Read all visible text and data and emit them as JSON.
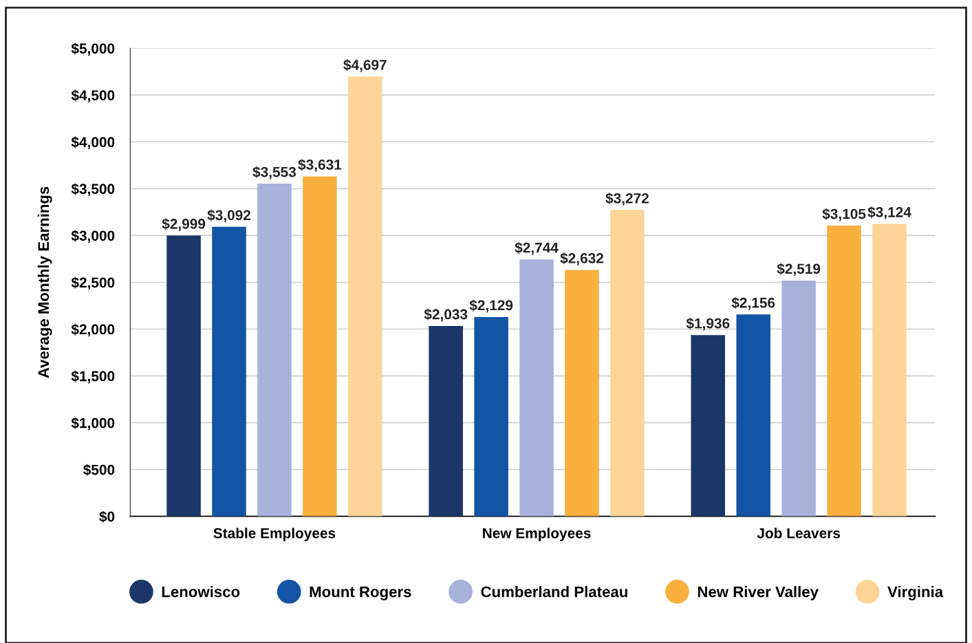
{
  "chart_data": {
    "type": "bar",
    "ylabel": "Average Monthly Earnings",
    "categories": [
      "Stable Employees",
      "New Employees",
      "Job Leavers"
    ],
    "series": [
      {
        "name": "Lenowisco",
        "color": "#1b3668",
        "values": [
          2999,
          2033,
          1936
        ],
        "value_labels": [
          "$2,999",
          "$2,033",
          "$1,936"
        ]
      },
      {
        "name": "Mount Rogers",
        "color": "#1355a5",
        "values": [
          3092,
          2129,
          2156
        ],
        "value_labels": [
          "$3,092",
          "$2,129",
          "$2,156"
        ]
      },
      {
        "name": "Cumberland Plateau",
        "color": "#a8b1da",
        "values": [
          3553,
          2744,
          2519
        ],
        "value_labels": [
          "$3,553",
          "$2,744",
          "$2,519"
        ]
      },
      {
        "name": "New River Valley",
        "color": "#f9b03f",
        "values": [
          3631,
          2632,
          3105
        ],
        "value_labels": [
          "$3,631",
          "$2,632",
          "$3,105"
        ]
      },
      {
        "name": "Virginia",
        "color": "#fcd597",
        "values": [
          4697,
          3272,
          3124
        ],
        "value_labels": [
          "$4,697",
          "$3,272",
          "$3,124"
        ]
      }
    ],
    "ylim": [
      0,
      5000
    ],
    "yticks": [
      {
        "value": 0,
        "label": "$0"
      },
      {
        "value": 500,
        "label": "$500"
      },
      {
        "value": 1000,
        "label": "$1,000"
      },
      {
        "value": 1500,
        "label": "$1,500"
      },
      {
        "value": 2000,
        "label": "$2,000"
      },
      {
        "value": 2500,
        "label": "$2,500"
      },
      {
        "value": 3000,
        "label": "$3,000"
      },
      {
        "value": 3500,
        "label": "$3,500"
      },
      {
        "value": 4000,
        "label": "$4,000"
      },
      {
        "value": 4500,
        "label": "$4,500"
      },
      {
        "value": 5000,
        "label": "$5,000"
      }
    ],
    "grid": "y",
    "legend": "bottom",
    "marker": "circle"
  }
}
